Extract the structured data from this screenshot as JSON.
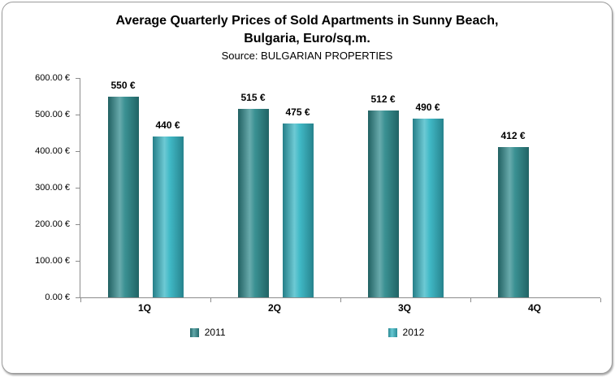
{
  "title_line1": "Average Quarterly Prices of Sold Apartments in Sunny Beach,",
  "title_line2": "Bulgaria, Euro/sq.m.",
  "source": "Source: BULGARIAN PROPERTIES",
  "chart_data": {
    "type": "bar",
    "title": "Average Quarterly Prices of Sold Apartments in Sunny Beach, Bulgaria, Euro/sq.m.",
    "subtitle": "Source: BULGARIAN PROPERTIES",
    "categories": [
      "1Q",
      "2Q",
      "3Q",
      "4Q"
    ],
    "series": [
      {
        "name": "2011",
        "color": "#2E8A8C",
        "values": [
          550,
          515,
          512,
          412
        ],
        "labels": [
          "550 €",
          "515 €",
          "512 €",
          "412 €"
        ]
      },
      {
        "name": "2012",
        "color": "#35B5C3",
        "values": [
          440,
          475,
          490,
          null
        ],
        "labels": [
          "440 €",
          "475 €",
          "490 €",
          null
        ]
      }
    ],
    "ylim": [
      0,
      600
    ],
    "y_tick_values": [
      0,
      100,
      200,
      300,
      400,
      500,
      600
    ],
    "y_tick_labels": [
      "0.00 €",
      "100.00 €",
      "200.00 €",
      "300.00 €",
      "400.00 €",
      "500.00 €",
      "600.00 €"
    ],
    "grid": false,
    "legend_position": "bottom",
    "axis_color": "#8c8c8c"
  }
}
